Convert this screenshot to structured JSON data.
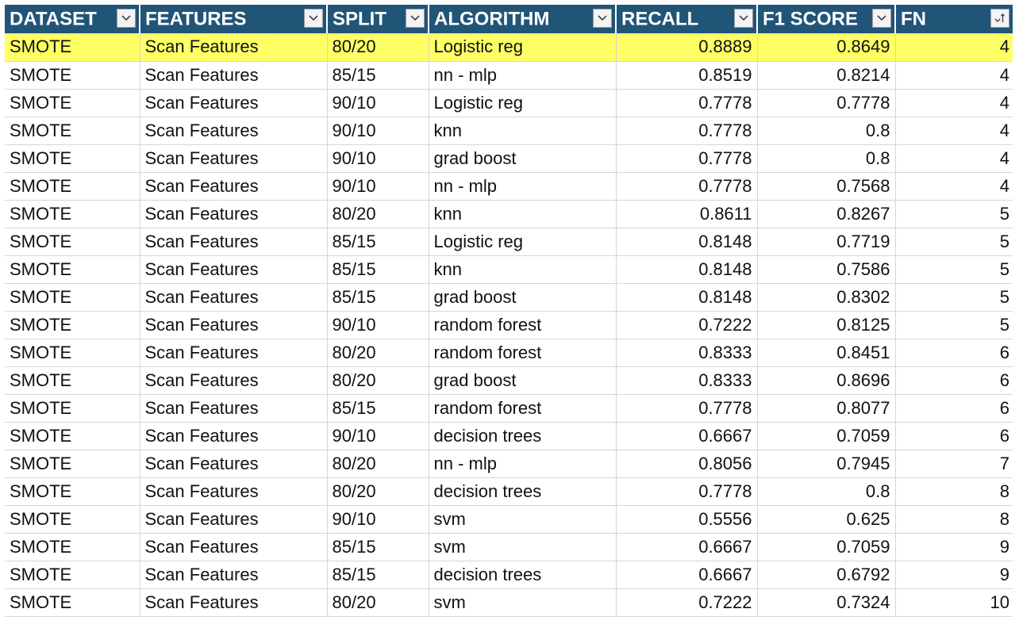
{
  "table": {
    "columns": [
      {
        "label": "DATASET",
        "key": "dataset",
        "filter_icon": "dropdown-arrow-icon"
      },
      {
        "label": "FEATURES",
        "key": "features",
        "filter_icon": "dropdown-arrow-icon"
      },
      {
        "label": "SPLIT",
        "key": "split",
        "filter_icon": "dropdown-arrow-icon"
      },
      {
        "label": "ALGORITHM",
        "key": "algorithm",
        "filter_icon": "dropdown-arrow-icon"
      },
      {
        "label": "RECALL",
        "key": "recall",
        "filter_icon": "dropdown-arrow-icon"
      },
      {
        "label": "F1 SCORE",
        "key": "f1",
        "filter_icon": "dropdown-arrow-icon"
      },
      {
        "label": "FN",
        "key": "fn",
        "filter_icon": "sort-ascending-icon"
      }
    ],
    "rows": [
      {
        "dataset": "SMOTE",
        "features": "Scan Features",
        "split": "80/20",
        "algorithm": "Logistic reg",
        "recall": "0.8889",
        "f1": "0.8649",
        "fn": "4",
        "highlighted": true
      },
      {
        "dataset": "SMOTE",
        "features": "Scan Features",
        "split": "85/15",
        "algorithm": "nn - mlp",
        "recall": "0.8519",
        "f1": "0.8214",
        "fn": "4"
      },
      {
        "dataset": "SMOTE",
        "features": "Scan Features",
        "split": "90/10",
        "algorithm": "Logistic reg",
        "recall": "0.7778",
        "f1": "0.7778",
        "fn": "4"
      },
      {
        "dataset": "SMOTE",
        "features": "Scan Features",
        "split": "90/10",
        "algorithm": "knn",
        "recall": "0.7778",
        "f1": "0.8",
        "fn": "4"
      },
      {
        "dataset": "SMOTE",
        "features": "Scan Features",
        "split": "90/10",
        "algorithm": "grad boost",
        "recall": "0.7778",
        "f1": "0.8",
        "fn": "4"
      },
      {
        "dataset": "SMOTE",
        "features": "Scan Features",
        "split": "90/10",
        "algorithm": "nn - mlp",
        "recall": "0.7778",
        "f1": "0.7568",
        "fn": "4"
      },
      {
        "dataset": "SMOTE",
        "features": "Scan Features",
        "split": "80/20",
        "algorithm": "knn",
        "recall": "0.8611",
        "f1": "0.8267",
        "fn": "5"
      },
      {
        "dataset": "SMOTE",
        "features": "Scan Features",
        "split": "85/15",
        "algorithm": "Logistic reg",
        "recall": "0.8148",
        "f1": "0.7719",
        "fn": "5"
      },
      {
        "dataset": "SMOTE",
        "features": "Scan Features",
        "split": "85/15",
        "algorithm": "knn",
        "recall": "0.8148",
        "f1": "0.7586",
        "fn": "5"
      },
      {
        "dataset": "SMOTE",
        "features": "Scan Features",
        "split": "85/15",
        "algorithm": "grad boost",
        "recall": "0.8148",
        "f1": "0.8302",
        "fn": "5"
      },
      {
        "dataset": "SMOTE",
        "features": "Scan Features",
        "split": "90/10",
        "algorithm": "random forest",
        "recall": "0.7222",
        "f1": "0.8125",
        "fn": "5"
      },
      {
        "dataset": "SMOTE",
        "features": "Scan Features",
        "split": "80/20",
        "algorithm": "random forest",
        "recall": "0.8333",
        "f1": "0.8451",
        "fn": "6"
      },
      {
        "dataset": "SMOTE",
        "features": "Scan Features",
        "split": "80/20",
        "algorithm": "grad boost",
        "recall": "0.8333",
        "f1": "0.8696",
        "fn": "6"
      },
      {
        "dataset": "SMOTE",
        "features": "Scan Features",
        "split": "85/15",
        "algorithm": "random forest",
        "recall": "0.7778",
        "f1": "0.8077",
        "fn": "6"
      },
      {
        "dataset": "SMOTE",
        "features": "Scan Features",
        "split": "90/10",
        "algorithm": "decision trees",
        "recall": "0.6667",
        "f1": "0.7059",
        "fn": "6"
      },
      {
        "dataset": "SMOTE",
        "features": "Scan Features",
        "split": "80/20",
        "algorithm": "nn - mlp",
        "recall": "0.8056",
        "f1": "0.7945",
        "fn": "7"
      },
      {
        "dataset": "SMOTE",
        "features": "Scan Features",
        "split": "80/20",
        "algorithm": "decision trees",
        "recall": "0.7778",
        "f1": "0.8",
        "fn": "8"
      },
      {
        "dataset": "SMOTE",
        "features": "Scan Features",
        "split": "90/10",
        "algorithm": "svm",
        "recall": "0.5556",
        "f1": "0.625",
        "fn": "8"
      },
      {
        "dataset": "SMOTE",
        "features": "Scan Features",
        "split": "85/15",
        "algorithm": "svm",
        "recall": "0.6667",
        "f1": "0.7059",
        "fn": "9"
      },
      {
        "dataset": "SMOTE",
        "features": "Scan Features",
        "split": "85/15",
        "algorithm": "decision trees",
        "recall": "0.6667",
        "f1": "0.6792",
        "fn": "9"
      },
      {
        "dataset": "SMOTE",
        "features": "Scan Features",
        "split": "80/20",
        "algorithm": "svm",
        "recall": "0.7222",
        "f1": "0.7324",
        "fn": "10"
      }
    ]
  },
  "colors": {
    "header_bg": "#215578",
    "header_text": "#ffffff",
    "highlight_row": "#ffff66",
    "gridline": "#d6d6d6"
  }
}
